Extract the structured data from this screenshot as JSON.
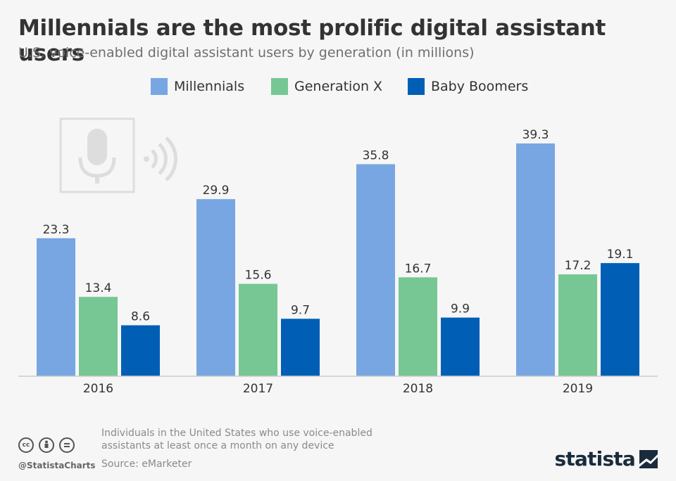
{
  "title": "Millennials are the most prolific digital assistant users",
  "subtitle": "U.S. voice-enabled digital assistant users by generation (in millions)",
  "legend": [
    {
      "label": "Millennials",
      "color": "#77a6e2"
    },
    {
      "label": "Generation X",
      "color": "#76c794"
    },
    {
      "label": "Baby Boomers",
      "color": "#005eb5"
    }
  ],
  "chart_data": {
    "type": "bar",
    "title": "Millennials are the most prolific digital assistant users",
    "subtitle": "U.S. voice-enabled digital assistant users by generation (in millions)",
    "categories": [
      "2016",
      "2017",
      "2018",
      "2019"
    ],
    "series": [
      {
        "name": "Millennials",
        "values": [
          23.3,
          29.9,
          35.8,
          39.3
        ],
        "color": "#77a6e2"
      },
      {
        "name": "Generation X",
        "values": [
          13.4,
          15.6,
          16.7,
          17.2
        ],
        "color": "#76c794"
      },
      {
        "name": "Baby Boomers",
        "values": [
          8.6,
          9.7,
          9.9,
          19.1
        ],
        "color": "#005eb5"
      }
    ],
    "xlabel": "",
    "ylabel": "",
    "ylim": [
      0,
      45
    ],
    "grid": false,
    "legend_position": "top-center",
    "data_labels": true
  },
  "illustration": {
    "icon": "microphone-icon",
    "secondary_icon": "sound-waves-icon"
  },
  "footer": {
    "note": "Individuals in the United States who use voice-enabled assistants at least once a month on any device",
    "source": "Source: eMarketer",
    "handle": "@StatistaCharts",
    "license_icons": [
      "cc-icon",
      "attribution-icon",
      "no-derivatives-icon"
    ],
    "brand": "statista",
    "brand_icon": "statista-logo-icon"
  }
}
